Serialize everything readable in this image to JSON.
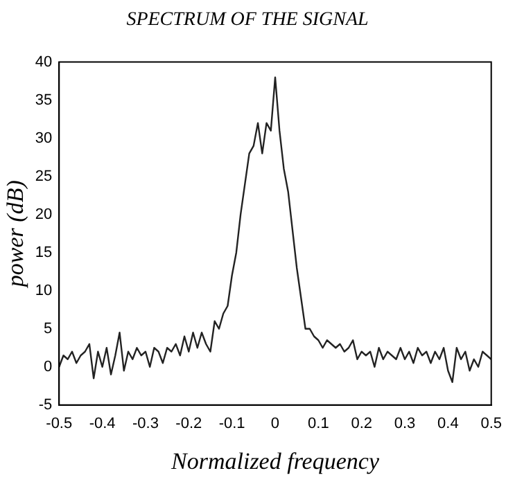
{
  "chart_data": {
    "type": "line",
    "title": "SPECTRUM OF THE SIGNAL",
    "xlabel": "Normalized frequency",
    "ylabel": "power (dB)",
    "x": [
      -0.5,
      -0.49,
      -0.48,
      -0.47,
      -0.46,
      -0.45,
      -0.44,
      -0.43,
      -0.42,
      -0.41,
      -0.4,
      -0.39,
      -0.38,
      -0.37,
      -0.36,
      -0.35,
      -0.34,
      -0.33,
      -0.32,
      -0.31,
      -0.3,
      -0.29,
      -0.28,
      -0.27,
      -0.26,
      -0.25,
      -0.24,
      -0.23,
      -0.22,
      -0.21,
      -0.2,
      -0.19,
      -0.18,
      -0.17,
      -0.16,
      -0.15,
      -0.14,
      -0.13,
      -0.12,
      -0.11,
      -0.1,
      -0.09,
      -0.08,
      -0.07,
      -0.06,
      -0.05,
      -0.04,
      -0.03,
      -0.02,
      -0.01,
      0,
      0.01,
      0.02,
      0.03,
      0.04,
      0.05,
      0.06,
      0.07,
      0.08,
      0.09,
      0.1,
      0.11,
      0.12,
      0.13,
      0.14,
      0.15,
      0.16,
      0.17,
      0.18,
      0.19,
      0.2,
      0.21,
      0.22,
      0.23,
      0.24,
      0.25,
      0.26,
      0.27,
      0.28,
      0.29,
      0.3,
      0.31,
      0.32,
      0.33,
      0.34,
      0.35,
      0.36,
      0.37,
      0.38,
      0.39,
      0.4,
      0.41,
      0.42,
      0.43,
      0.44,
      0.45,
      0.46,
      0.47,
      0.48,
      0.49,
      0.5
    ],
    "series": [
      {
        "color": "#222222",
        "values": [
          0,
          1.5,
          1,
          2,
          0.5,
          1.5,
          2,
          3,
          -1.5,
          2,
          0,
          2.5,
          -1,
          1.5,
          4.5,
          -0.5,
          2,
          1,
          2.5,
          1.5,
          2,
          0,
          2.5,
          2,
          0.5,
          2.5,
          2,
          3,
          1.5,
          4,
          2,
          4.5,
          2.5,
          4.5,
          3,
          2,
          6,
          5,
          7,
          8,
          12,
          15,
          20,
          24,
          28,
          29,
          32,
          28,
          32,
          31,
          38,
          31,
          26,
          23,
          18,
          13,
          9,
          5,
          5,
          4,
          3.5,
          2.5,
          3.5,
          3,
          2.5,
          3,
          2,
          2.5,
          3.5,
          1,
          2,
          1.5,
          2,
          0,
          2.5,
          1,
          2,
          1.5,
          1,
          2.5,
          1,
          2,
          0.5,
          2.5,
          1.5,
          2,
          0.5,
          2,
          1,
          2.5,
          -0.5,
          -2,
          2.5,
          1,
          2,
          -0.5,
          1,
          0,
          2,
          1.5,
          1
        ]
      }
    ],
    "xlim": [
      -0.5,
      0.5
    ],
    "xticks": [
      -0.5,
      -0.4,
      -0.3,
      -0.2,
      -0.1,
      0,
      0.1,
      0.2,
      0.3,
      0.4,
      0.5
    ],
    "ylim": [
      -5,
      40
    ],
    "yticks": [
      -5,
      0,
      5,
      10,
      15,
      20,
      25,
      30,
      35,
      40
    ],
    "grid": false,
    "legend": false,
    "marker": "none",
    "line_style": "solid"
  }
}
